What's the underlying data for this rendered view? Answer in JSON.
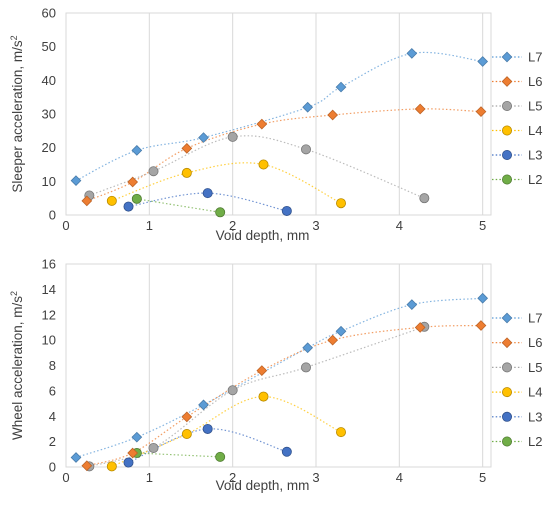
{
  "chart_data": [
    {
      "type": "scatter",
      "title": "",
      "xlabel": "Void depth, mm",
      "ylabel_main": "Sleeper acceleration, m/s",
      "ylabel_sup": "2",
      "xlim": [
        0,
        5.1
      ],
      "ylim": [
        0,
        60
      ],
      "xticks": [
        "0",
        "1",
        "2",
        "3",
        "4",
        "5"
      ],
      "yticks": [
        "0",
        "10",
        "20",
        "30",
        "40",
        "50",
        "60"
      ],
      "grid": "vertical",
      "legend_position": "right",
      "series": [
        {
          "name": "L7",
          "color": "#5B9BD5",
          "marker": "diamond",
          "x": [
            0.12,
            0.85,
            1.65,
            2.9,
            3.3,
            4.15,
            5.0
          ],
          "y": [
            10.2,
            19.2,
            23.0,
            32.0,
            38.0,
            48.0,
            45.6
          ]
        },
        {
          "name": "L6",
          "color": "#ED7D31",
          "marker": "diamond",
          "x": [
            0.25,
            0.8,
            1.45,
            2.35,
            3.2,
            4.25,
            4.98
          ],
          "y": [
            4.2,
            9.8,
            19.8,
            27.0,
            29.7,
            31.5,
            30.7
          ]
        },
        {
          "name": "L5",
          "color": "#A5A5A5",
          "marker": "circle",
          "x": [
            0.28,
            1.05,
            2.0,
            2.88,
            4.3
          ],
          "y": [
            5.8,
            13.0,
            23.2,
            19.5,
            5.0
          ]
        },
        {
          "name": "L4",
          "color": "#FFC000",
          "marker": "circle",
          "x": [
            0.55,
            1.45,
            2.37,
            3.3
          ],
          "y": [
            4.2,
            12.5,
            15.0,
            3.5
          ]
        },
        {
          "name": "L3",
          "color": "#4472C4",
          "marker": "circle",
          "x": [
            0.75,
            1.7,
            2.65
          ],
          "y": [
            2.5,
            6.5,
            1.2
          ]
        },
        {
          "name": "L2",
          "color": "#70AD47",
          "marker": "circle",
          "x": [
            0.85,
            1.85
          ],
          "y": [
            4.8,
            0.8
          ]
        }
      ]
    },
    {
      "type": "scatter",
      "title": "",
      "xlabel": "Void depth, mm",
      "ylabel_main": "Wheel acceleration, m/s",
      "ylabel_sup": "2",
      "xlim": [
        0,
        5.1
      ],
      "ylim": [
        0,
        16
      ],
      "xticks": [
        "0",
        "1",
        "2",
        "3",
        "4",
        "5"
      ],
      "yticks": [
        "0",
        "2",
        "4",
        "6",
        "8",
        "10",
        "12",
        "14",
        "16"
      ],
      "grid": "vertical",
      "legend_position": "right",
      "series": [
        {
          "name": "L7",
          "color": "#5B9BD5",
          "marker": "diamond",
          "x": [
            0.12,
            0.85,
            1.65,
            2.9,
            3.3,
            4.15,
            5.0
          ],
          "y": [
            0.75,
            2.35,
            4.9,
            9.4,
            10.7,
            12.8,
            13.3
          ]
        },
        {
          "name": "L6",
          "color": "#ED7D31",
          "marker": "diamond",
          "x": [
            0.25,
            0.8,
            1.45,
            2.35,
            3.2,
            4.25,
            4.98
          ],
          "y": [
            0.1,
            1.1,
            3.95,
            7.6,
            10.0,
            11.0,
            11.15
          ]
        },
        {
          "name": "L5",
          "color": "#A5A5A5",
          "marker": "circle",
          "x": [
            0.28,
            1.05,
            2.0,
            2.88,
            4.3
          ],
          "y": [
            0.05,
            1.5,
            6.05,
            7.85,
            11.05
          ]
        },
        {
          "name": "L4",
          "color": "#FFC000",
          "marker": "circle",
          "x": [
            0.55,
            1.45,
            2.37,
            3.3
          ],
          "y": [
            0.05,
            2.6,
            5.55,
            2.75
          ]
        },
        {
          "name": "L3",
          "color": "#4472C4",
          "marker": "circle",
          "x": [
            0.75,
            1.7,
            2.65
          ],
          "y": [
            0.35,
            3.0,
            1.2
          ]
        },
        {
          "name": "L2",
          "color": "#70AD47",
          "marker": "circle",
          "x": [
            0.85,
            1.85
          ],
          "y": [
            1.1,
            0.8
          ]
        }
      ]
    }
  ]
}
